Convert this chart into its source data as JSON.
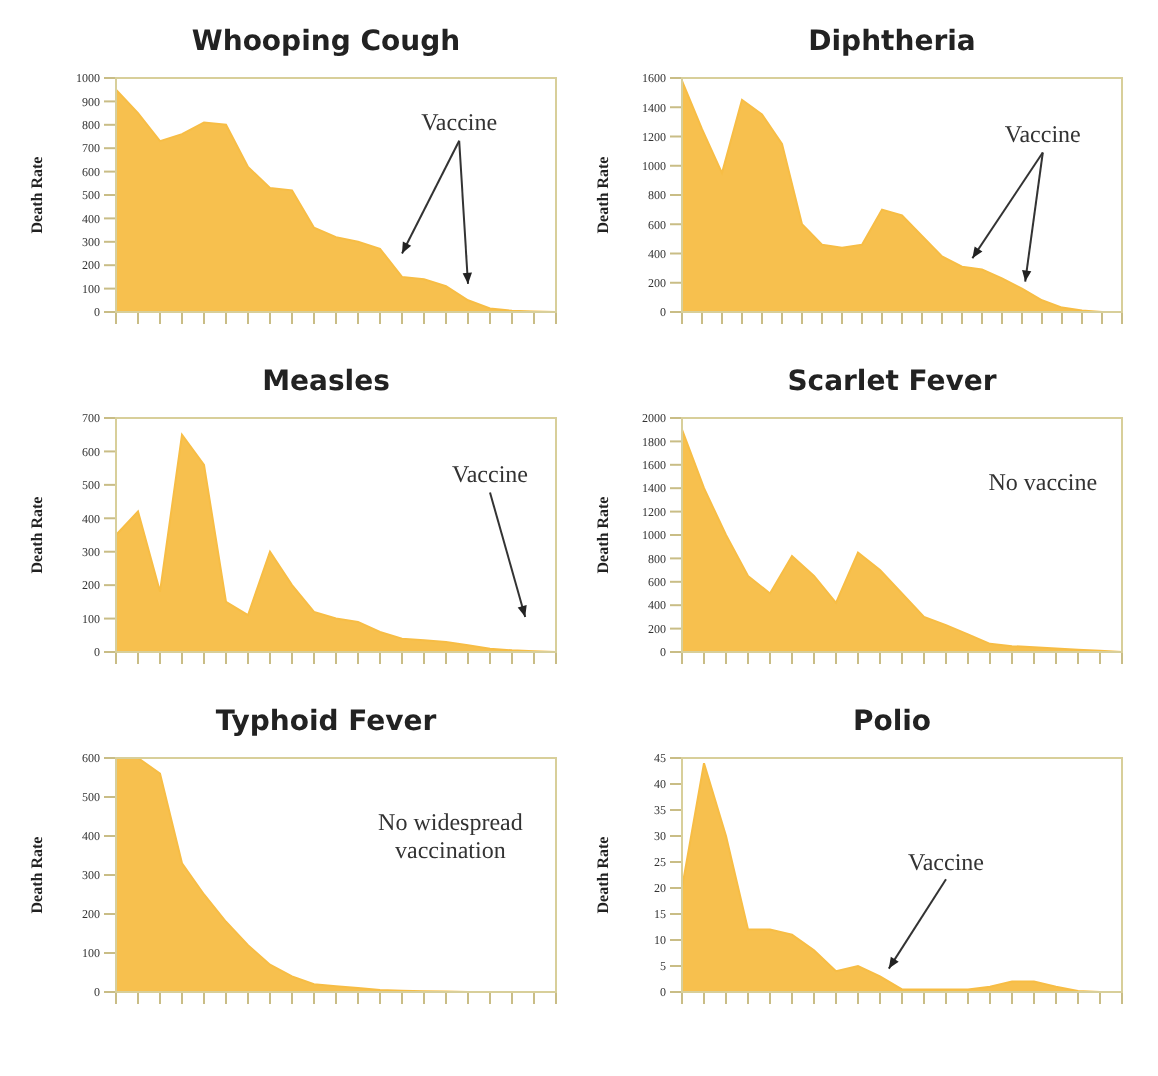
{
  "chart_data": [
    {
      "type": "area",
      "title": "Whooping Cough",
      "ylabel": "Death Rate",
      "categories": [
        null,
        null,
        null,
        null,
        null,
        null,
        null,
        null,
        null,
        null,
        null,
        null,
        null,
        null,
        null,
        null,
        null,
        null,
        null,
        null,
        null
      ],
      "values": [
        950,
        850,
        730,
        760,
        810,
        800,
        620,
        530,
        520,
        360,
        320,
        300,
        270,
        150,
        140,
        110,
        50,
        15,
        5,
        2,
        0
      ],
      "color": "#f7bd45",
      "ylim": [
        0,
        1000
      ],
      "yticks": [
        0,
        100,
        200,
        300,
        400,
        500,
        600,
        700,
        800,
        900,
        1000
      ],
      "tick_labels": "y",
      "annotations": [
        "Vaccine"
      ]
    },
    {
      "type": "area",
      "title": "Diphtheria",
      "ylabel": "Death Rate",
      "categories": [
        null,
        null,
        null,
        null,
        null,
        null,
        null,
        null,
        null,
        null,
        null,
        null,
        null,
        null,
        null,
        null,
        null,
        null,
        null,
        null,
        null,
        null,
        null
      ],
      "values": [
        1580,
        1250,
        950,
        1450,
        1350,
        1150,
        600,
        460,
        440,
        460,
        700,
        660,
        520,
        380,
        310,
        290,
        230,
        160,
        80,
        30,
        10,
        0,
        0
      ],
      "color": "#f7bd45",
      "ylim": [
        0,
        1600
      ],
      "yticks": [
        0,
        200,
        400,
        600,
        800,
        1000,
        1200,
        1400,
        1600
      ],
      "tick_labels": "y",
      "annotations": [
        "Vaccine"
      ]
    },
    {
      "type": "area",
      "title": "Measles",
      "ylabel": "Death Rate",
      "categories": [
        null,
        null,
        null,
        null,
        null,
        null,
        null,
        null,
        null,
        null,
        null,
        null,
        null,
        null,
        null,
        null,
        null,
        null,
        null,
        null,
        null
      ],
      "values": [
        350,
        420,
        180,
        650,
        560,
        150,
        110,
        300,
        200,
        120,
        100,
        90,
        60,
        40,
        35,
        30,
        20,
        10,
        5,
        2,
        0
      ],
      "color": "#f7bd45",
      "ylim": [
        0,
        700
      ],
      "yticks": [
        0,
        100,
        200,
        300,
        400,
        500,
        600,
        700
      ],
      "tick_labels": "y",
      "annotations": [
        "Vaccine"
      ]
    },
    {
      "type": "area",
      "title": "Scarlet Fever",
      "ylabel": "Death Rate",
      "categories": [
        null,
        null,
        null,
        null,
        null,
        null,
        null,
        null,
        null,
        null,
        null,
        null,
        null,
        null,
        null,
        null,
        null,
        null,
        null,
        null,
        null
      ],
      "values": [
        1900,
        1400,
        1000,
        650,
        500,
        820,
        650,
        420,
        850,
        700,
        500,
        300,
        230,
        150,
        70,
        50,
        40,
        30,
        20,
        10,
        0
      ],
      "color": "#f7bd45",
      "ylim": [
        0,
        2000
      ],
      "yticks": [
        0,
        200,
        400,
        600,
        800,
        1000,
        1200,
        1400,
        1600,
        1800,
        2000
      ],
      "tick_labels": "y",
      "annotations": [
        "No vaccine"
      ]
    },
    {
      "type": "area",
      "title": "Typhoid Fever",
      "ylabel": "Death Rate",
      "categories": [
        null,
        null,
        null,
        null,
        null,
        null,
        null,
        null,
        null,
        null,
        null,
        null,
        null,
        null,
        null,
        null,
        null,
        null,
        null,
        null,
        null
      ],
      "values": [
        600,
        600,
        560,
        330,
        250,
        180,
        120,
        70,
        40,
        20,
        15,
        10,
        5,
        3,
        2,
        1,
        0,
        0,
        0,
        0,
        0
      ],
      "color": "#f7bd45",
      "ylim": [
        0,
        600
      ],
      "yticks": [
        0,
        100,
        200,
        300,
        400,
        500,
        600
      ],
      "tick_labels": "y",
      "annotations": [
        "No widespread vaccination"
      ]
    },
    {
      "type": "area",
      "title": "Polio",
      "ylabel": "Death Rate",
      "categories": [
        null,
        null,
        null,
        null,
        null,
        null,
        null,
        null,
        null,
        null,
        null,
        null,
        null,
        null,
        null,
        null,
        null,
        null,
        null,
        null,
        null
      ],
      "values": [
        20,
        44,
        30,
        12,
        12,
        11,
        8,
        4,
        5,
        3,
        0.5,
        0.5,
        0.5,
        0.5,
        1,
        2,
        2,
        1,
        0.2,
        0,
        0
      ],
      "color": "#f7bd45",
      "ylim": [
        0,
        45
      ],
      "yticks": [
        0,
        5,
        10,
        15,
        20,
        25,
        30,
        35,
        40,
        45
      ],
      "tick_labels": "y",
      "annotations": [
        "Vaccine"
      ]
    }
  ]
}
